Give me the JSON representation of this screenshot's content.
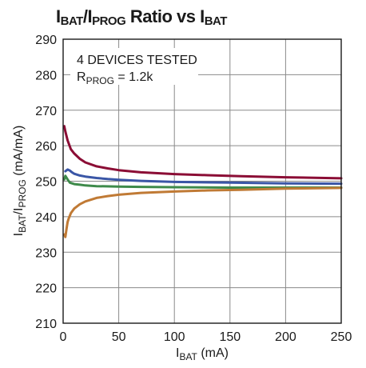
{
  "title": {
    "i1": "I",
    "s1": "BAT",
    "slash": "/",
    "i2": "I",
    "s2": "PROG",
    "rest": " Ratio vs I",
    "s3": "BAT"
  },
  "chart_data": {
    "type": "line",
    "xlim": [
      0,
      250
    ],
    "ylim": [
      210,
      290
    ],
    "x_ticks": [
      0,
      50,
      100,
      150,
      200,
      250
    ],
    "y_ticks": [
      210,
      220,
      230,
      240,
      250,
      260,
      270,
      280,
      290
    ],
    "grid": true,
    "xlabel": {
      "main": "I",
      "sub": "BAT",
      "unit": " (mA)"
    },
    "ylabel": {
      "main": "I",
      "sub1": "BAT",
      "slash": "/I",
      "sub2": "PROG",
      "unit": " (mA/mA)"
    },
    "annotations": {
      "line1": "4 DEVICES TESTED",
      "line2_main": "R",
      "line2_sub": "PROG",
      "line2_value": " = 1.2k"
    },
    "series": [
      {
        "color": "#8b0d35",
        "x": [
          1,
          2,
          4,
          7,
          10,
          15,
          20,
          30,
          40,
          50,
          70,
          100,
          130,
          160,
          200,
          250
        ],
        "y": [
          265.5,
          264.0,
          261.5,
          259.0,
          257.8,
          256.3,
          255.3,
          254.2,
          253.6,
          253.1,
          252.5,
          252.0,
          251.7,
          251.4,
          251.1,
          250.8
        ]
      },
      {
        "color": "#3a56a6",
        "x": [
          2,
          4,
          6,
          8,
          10,
          15,
          20,
          30,
          40,
          50,
          70,
          100,
          150,
          200,
          250
        ],
        "y": [
          252.8,
          253.3,
          253.0,
          252.5,
          252.1,
          251.6,
          251.3,
          250.9,
          250.6,
          250.4,
          250.1,
          249.8,
          249.6,
          249.4,
          249.3
        ]
      },
      {
        "color": "#3e8a4a",
        "x": [
          1,
          2,
          4,
          6,
          10,
          15,
          20,
          30,
          50,
          70,
          100,
          150,
          200,
          250
        ],
        "y": [
          250.5,
          251.5,
          250.5,
          249.6,
          249.2,
          249.0,
          248.8,
          248.6,
          248.5,
          248.4,
          248.3,
          248.2,
          248.2,
          248.2
        ]
      },
      {
        "color": "#c07a35",
        "x": [
          1,
          2,
          3,
          4,
          5,
          7,
          10,
          15,
          20,
          30,
          40,
          50,
          70,
          100,
          130,
          160,
          200,
          250
        ],
        "y": [
          235.0,
          234.3,
          236.5,
          238.5,
          239.5,
          241.0,
          242.3,
          243.5,
          244.3,
          245.3,
          245.8,
          246.2,
          246.7,
          247.1,
          247.4,
          247.6,
          247.9,
          248.1
        ]
      }
    ]
  }
}
